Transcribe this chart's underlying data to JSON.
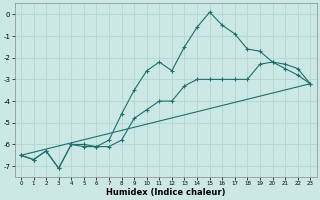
{
  "xlabel": "Humidex (Indice chaleur)",
  "bg_color": "#cce8e4",
  "line_color": "#1a7070",
  "grid_color": "#b8d8d4",
  "xlim": [
    -0.5,
    23.5
  ],
  "ylim": [
    -7.5,
    0.5
  ],
  "yticks": [
    0,
    -1,
    -2,
    -3,
    -4,
    -5,
    -6,
    -7
  ],
  "xticks": [
    0,
    1,
    2,
    3,
    4,
    5,
    6,
    7,
    8,
    9,
    10,
    11,
    12,
    13,
    14,
    15,
    16,
    17,
    18,
    19,
    20,
    21,
    22,
    23
  ],
  "line1_x": [
    0,
    1,
    2,
    3,
    4,
    5,
    6,
    7,
    8,
    9,
    10,
    11,
    12,
    13,
    14,
    15,
    16,
    17,
    18,
    19,
    20,
    21,
    22,
    23
  ],
  "line1_y": [
    -6.5,
    -6.7,
    -6.3,
    -7.1,
    -6.0,
    -6.0,
    -6.1,
    -5.8,
    -4.6,
    -3.5,
    -2.6,
    -2.2,
    -2.6,
    -1.5,
    -0.6,
    0.1,
    -0.5,
    -0.9,
    -1.6,
    -1.7,
    -2.2,
    -2.5,
    -2.8,
    -3.2
  ],
  "line2_x": [
    0,
    1,
    2,
    3,
    4,
    5,
    6,
    7,
    8,
    9,
    10,
    11,
    12,
    13,
    14,
    15,
    16,
    17,
    18,
    19,
    20,
    21,
    22,
    23
  ],
  "line2_y": [
    -6.5,
    -6.7,
    -6.3,
    -7.1,
    -6.0,
    -6.1,
    -6.1,
    -6.1,
    -5.8,
    -4.8,
    -4.4,
    -4.0,
    -4.0,
    -3.3,
    -3.0,
    -3.0,
    -3.0,
    -3.0,
    -3.0,
    -2.3,
    -2.2,
    -2.3,
    -2.5,
    -3.2
  ],
  "line3_x": [
    0,
    23
  ],
  "line3_y": [
    -6.5,
    -3.2
  ]
}
